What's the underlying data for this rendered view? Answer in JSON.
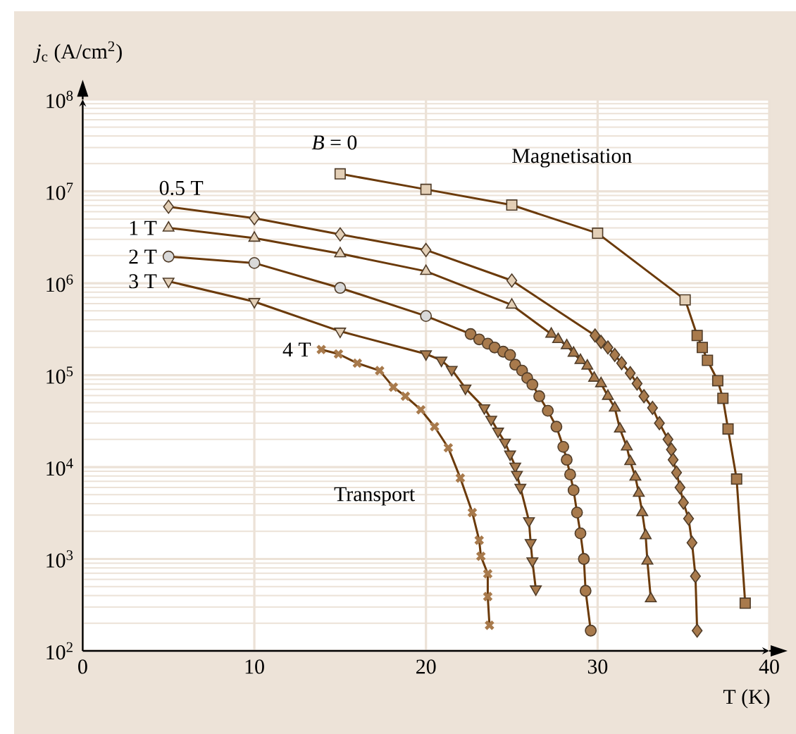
{
  "chart_data": {
    "type": "line",
    "log": "y",
    "grid": true,
    "line_style": "solid",
    "xlabel": "T (K)",
    "ylabel": "*j*$_{c}$ (A/cm$^{2}$)",
    "xlim": [
      0,
      40
    ],
    "ylim": [
      100,
      100000000
    ],
    "xticks": [
      0,
      10,
      20,
      30,
      40
    ],
    "yticks": [
      {
        "value": 100,
        "label": "10$^{2}$"
      },
      {
        "value": 1000,
        "label": "10$^{3}$"
      },
      {
        "value": 10000,
        "label": "10$^{4}$"
      },
      {
        "value": 100000,
        "label": "10$^{5}$"
      },
      {
        "value": 1000000,
        "label": "10$^{6}$"
      },
      {
        "value": 10000000,
        "label": "10$^{7}$"
      },
      {
        "value": 100000000,
        "label": "10$^{8}$"
      }
    ],
    "annotations": [
      "Magnetisation",
      "Transport"
    ],
    "series": [
      {
        "name": "*B* = 0",
        "color": "#6b3a0a",
        "marker": "square",
        "x": [
          15.0,
          20.0,
          25.0,
          30.0,
          35.1,
          35.8,
          36.1,
          36.4,
          37.0,
          37.3,
          37.6,
          38.1,
          38.6
        ],
        "values": [
          15500000,
          10500000,
          7100000,
          3500000,
          660000,
          270000,
          200000,
          145000,
          87000,
          56000,
          26000,
          7400,
          330
        ],
        "colors": [
          "#e3cfb6",
          "#e3cfb6",
          "#e3cfb6",
          "#e3cfb6",
          "#e3cfb6",
          "#a87a4c",
          "#a87a4c",
          "#a87a4c",
          "#a87a4c",
          "#a87a4c",
          "#a87a4c",
          "#a87a4c",
          "#a87a4c"
        ]
      },
      {
        "name": "0.5 T",
        "color": "#6b3a0a",
        "marker": "diamond",
        "x": [
          5,
          10,
          15,
          20,
          25,
          29.85,
          30.2,
          30.6,
          31.0,
          31.4,
          31.9,
          32.3,
          32.7,
          33.2,
          33.6,
          34.1,
          34.3,
          34.4,
          34.6,
          34.8,
          35.0,
          35.3,
          35.5,
          35.7,
          35.8
        ],
        "values": [
          6800000,
          5100000,
          3400000,
          2300000,
          1070000,
          270000,
          230000,
          200000,
          166000,
          135000,
          105000,
          81000,
          59000,
          44000,
          30000,
          20000,
          15500,
          12000,
          8700,
          6000,
          4100,
          2750,
          1500,
          650,
          166
        ],
        "colors": [
          "#e3cfb6",
          "#e3cfb6",
          "#e3cfb6",
          "#e3cfb6",
          "#e3cfb6",
          "#a87a4c",
          "#a87a4c",
          "#a87a4c",
          "#a87a4c",
          "#a87a4c",
          "#a87a4c",
          "#a87a4c",
          "#a87a4c",
          "#a87a4c",
          "#a87a4c",
          "#a87a4c",
          "#a87a4c",
          "#a87a4c",
          "#a87a4c",
          "#a87a4c",
          "#a87a4c",
          "#a87a4c",
          "#a87a4c",
          "#a87a4c",
          "#a87a4c"
        ]
      },
      {
        "name": "1 T",
        "color": "#6b3a0a",
        "marker": "triangle",
        "x": [
          5,
          10,
          15,
          20,
          25,
          27.3,
          27.7,
          28.2,
          28.6,
          29.0,
          29.4,
          29.8,
          30.2,
          30.6,
          31.0,
          31.3,
          31.7,
          31.9,
          32.2,
          32.4,
          32.6,
          32.8,
          32.9,
          33.1
        ],
        "values": [
          4000000,
          3100000,
          2100000,
          1350000,
          580000,
          280000,
          245000,
          210000,
          174000,
          145000,
          126000,
          93000,
          81000,
          59000,
          44000,
          26000,
          16600,
          11500,
          7800,
          5200,
          3200,
          1800,
          950,
          370
        ],
        "colors": [
          "#e3cfb6",
          "#e3cfb6",
          "#e3cfb6",
          "#e3cfb6",
          "#e3cfb6",
          "#a87a4c",
          "#a87a4c",
          "#a87a4c",
          "#a87a4c",
          "#a87a4c",
          "#a87a4c",
          "#a87a4c",
          "#a87a4c",
          "#a87a4c",
          "#a87a4c",
          "#a87a4c",
          "#a87a4c",
          "#a87a4c",
          "#a87a4c",
          "#a87a4c",
          "#a87a4c",
          "#a87a4c",
          "#a87a4c",
          "#a87a4c"
        ]
      },
      {
        "name": "2 T",
        "color": "#6b3a0a",
        "marker": "circle",
        "x": [
          5,
          10,
          15,
          20,
          22.6,
          23.1,
          23.6,
          24.0,
          24.5,
          24.9,
          25.2,
          25.6,
          25.9,
          26.2,
          26.6,
          27.1,
          27.6,
          28.0,
          28.2,
          28.4,
          28.6,
          28.8,
          29.0,
          29.2,
          29.3,
          29.6
        ],
        "values": [
          1950000,
          1660000,
          890000,
          440000,
          280000,
          245000,
          220000,
          200000,
          180000,
          166000,
          130000,
          112000,
          93000,
          79000,
          59000,
          41000,
          27500,
          16600,
          12000,
          8300,
          5600,
          3200,
          1900,
          1000,
          450,
          166
        ],
        "colors": [
          "#d9d9d9",
          "#d9d9d9",
          "#d9d9d9",
          "#d9d9d9",
          "#a87a4c",
          "#a87a4c",
          "#a87a4c",
          "#a87a4c",
          "#a87a4c",
          "#a87a4c",
          "#a87a4c",
          "#a87a4c",
          "#a87a4c",
          "#a87a4c",
          "#a87a4c",
          "#a87a4c",
          "#a87a4c",
          "#a87a4c",
          "#a87a4c",
          "#a87a4c",
          "#a87a4c",
          "#a87a4c",
          "#a87a4c",
          "#a87a4c",
          "#a87a4c",
          "#a87a4c"
        ]
      },
      {
        "name": "3 T",
        "color": "#6b3a0a",
        "marker": "triangle-down",
        "x": [
          5,
          10,
          15,
          20.0,
          20.9,
          21.5,
          22.3,
          23.4,
          23.8,
          24.2,
          24.6,
          24.9,
          25.2,
          25.3,
          25.5,
          26.0,
          26.1,
          26.2,
          26.4
        ],
        "values": [
          1050000,
          630000,
          300000,
          170000,
          145000,
          115000,
          72000,
          44000,
          33000,
          24500,
          18600,
          13800,
          10200,
          8300,
          6000,
          2600,
          1500,
          950,
          470
        ],
        "colors": [
          "#e3cfb6",
          "#e3cfb6",
          "#e3cfb6",
          "#a87a4c",
          "#a87a4c",
          "#a87a4c",
          "#a87a4c",
          "#a87a4c",
          "#a87a4c",
          "#a87a4c",
          "#a87a4c",
          "#a87a4c",
          "#a87a4c",
          "#a87a4c",
          "#a87a4c",
          "#a87a4c",
          "#a87a4c",
          "#a87a4c",
          "#a87a4c"
        ]
      },
      {
        "name": "4 T",
        "color": "#6b3a0a",
        "marker": "cross",
        "x": [
          13.9,
          14.9,
          16.0,
          17.3,
          18.1,
          18.8,
          19.7,
          20.5,
          21.3,
          22.0,
          22.7,
          23.1,
          23.2,
          23.6,
          23.6,
          23.7
        ],
        "values": [
          190000,
          170000,
          135000,
          112000,
          74000,
          59000,
          42000,
          27500,
          16200,
          7600,
          3200,
          1600,
          1070,
          690,
          390,
          190
        ],
        "colors": [
          "#a87a4c",
          "#a87a4c",
          "#a87a4c",
          "#a87a4c",
          "#a87a4c",
          "#a87a4c",
          "#a87a4c",
          "#a87a4c",
          "#a87a4c",
          "#a87a4c",
          "#a87a4c",
          "#a87a4c",
          "#a87a4c",
          "#a87a4c",
          "#a87a4c",
          "#a87a4c"
        ]
      }
    ]
  }
}
